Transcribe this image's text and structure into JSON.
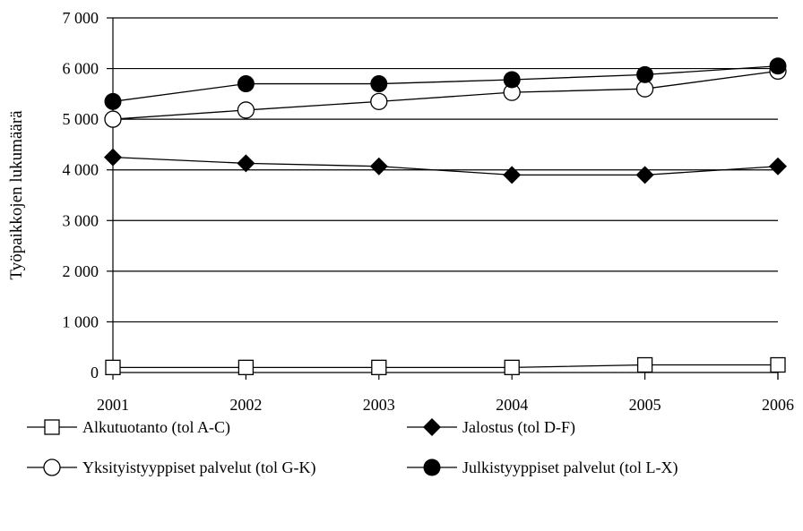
{
  "chart_data": {
    "type": "line",
    "ylabel": "Työpaikkojen lukumäärä",
    "xlabel": "",
    "x": [
      "2001",
      "2002",
      "2003",
      "2004",
      "2005",
      "2006"
    ],
    "ylim": [
      0,
      7000
    ],
    "yticks": [
      0,
      1000,
      2000,
      3000,
      4000,
      5000,
      6000,
      7000
    ],
    "ytick_labels": [
      "0",
      "1 000",
      "2 000",
      "3 000",
      "4 000",
      "5 000",
      "6 000",
      "7 000"
    ],
    "grid": "horizontal",
    "legend_position": "bottom",
    "series": [
      {
        "name": "Alkutuotanto (tol A-C)",
        "marker": "open-square",
        "color": "#000000",
        "values": [
          100,
          100,
          100,
          100,
          150,
          150
        ]
      },
      {
        "name": "Jalostus (tol D-F)",
        "marker": "filled-diamond",
        "color": "#000000",
        "values": [
          4250,
          4130,
          4070,
          3900,
          3900,
          4070
        ]
      },
      {
        "name": "Yksityistyyppiset palvelut (tol G-K)",
        "marker": "open-circle",
        "color": "#000000",
        "values": [
          5000,
          5180,
          5350,
          5530,
          5600,
          5950
        ]
      },
      {
        "name": "Julkistyyppiset palvelut (tol L-X)",
        "marker": "filled-circle",
        "color": "#000000",
        "values": [
          5350,
          5700,
          5700,
          5780,
          5880,
          6050
        ]
      }
    ]
  }
}
